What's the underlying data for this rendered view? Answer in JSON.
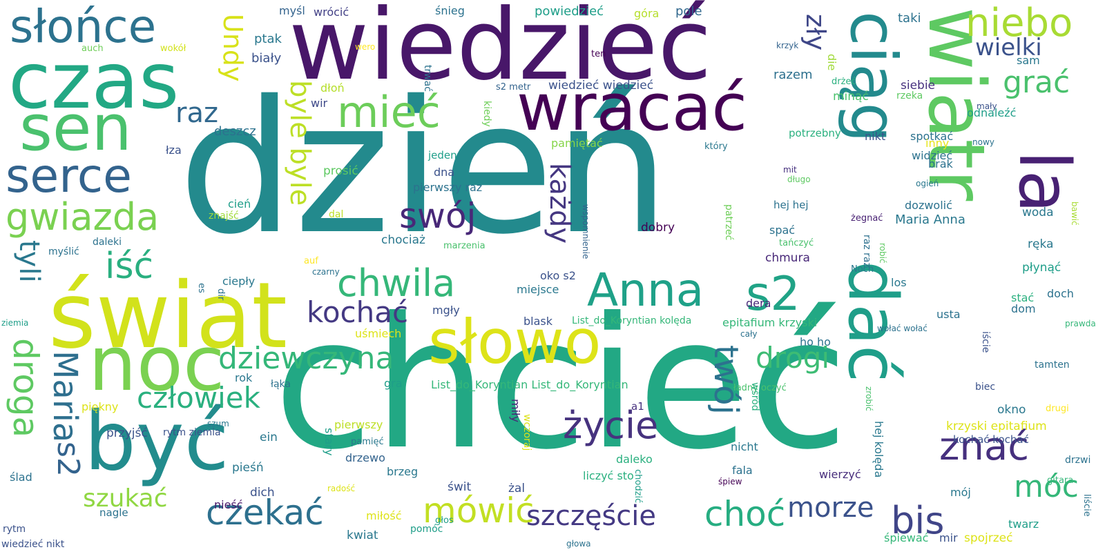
{
  "words": [
    {
      "text": "dzień",
      "color": "#238a8d",
      "v": false
    },
    {
      "text": "chcieć",
      "color": "#22a884",
      "v": false
    },
    {
      "text": "wiedzieć",
      "color": "#481769",
      "v": false
    },
    {
      "text": "świat",
      "color": "#d2e21b",
      "v": false
    },
    {
      "text": "czas",
      "color": "#22a884",
      "v": false
    },
    {
      "text": "być",
      "color": "#228c8d",
      "v": false
    },
    {
      "text": "noc",
      "color": "#7ad151",
      "v": false
    },
    {
      "text": "wiatr",
      "color": "#5ec962",
      "v": true
    },
    {
      "text": "sen",
      "color": "#4ac16d",
      "v": false
    },
    {
      "text": "słowo",
      "color": "#dde318",
      "v": false
    },
    {
      "text": "wracać",
      "color": "#440154",
      "v": false
    },
    {
      "text": "dać",
      "color": "#1f9e89",
      "v": true
    },
    {
      "text": "ciąg",
      "color": "#238a8d",
      "v": true
    },
    {
      "text": "la",
      "color": "#482173",
      "v": true
    },
    {
      "text": "słońce",
      "color": "#2c728e",
      "v": false
    },
    {
      "text": "serce",
      "color": "#33638d",
      "v": false
    },
    {
      "text": "mieć",
      "color": "#6ccd5a",
      "v": false
    },
    {
      "text": "Anna",
      "color": "#1fa188",
      "v": false
    },
    {
      "text": "s2",
      "color": "#20a386",
      "v": false
    },
    {
      "text": "gwiazda",
      "color": "#7ad151",
      "v": false
    },
    {
      "text": "niebo",
      "color": "#a8db34",
      "v": false
    },
    {
      "text": "wielki",
      "color": "#3b528b",
      "v": false
    },
    {
      "text": "grać",
      "color": "#4ac16d",
      "v": false
    },
    {
      "text": "zły",
      "color": "#3f4788",
      "v": true
    },
    {
      "text": "Undy",
      "color": "#d8e219",
      "v": true
    },
    {
      "text": "raz",
      "color": "#31688e",
      "v": false
    },
    {
      "text": "swój",
      "color": "#482878",
      "v": false
    },
    {
      "text": "iść",
      "color": "#29af7f",
      "v": false
    },
    {
      "text": "tyli",
      "color": "#2a788e",
      "v": true
    },
    {
      "text": "byle byle",
      "color": "#bddf26",
      "v": true
    },
    {
      "text": "chwila",
      "color": "#35b779",
      "v": false
    },
    {
      "text": "kochać",
      "color": "#443983",
      "v": false
    },
    {
      "text": "każdy",
      "color": "#453781",
      "v": true
    },
    {
      "text": "dziewczyna",
      "color": "#35b779",
      "v": false
    },
    {
      "text": "drogi",
      "color": "#3dbc74",
      "v": false
    },
    {
      "text": "twój",
      "color": "#2c728e",
      "v": true
    },
    {
      "text": "droga",
      "color": "#5ec962",
      "v": true
    },
    {
      "text": "Maria",
      "color": "#2e6f8e",
      "v": true
    },
    {
      "text": "człowiek",
      "color": "#2ab07f",
      "v": false
    },
    {
      "text": "życie",
      "color": "#46327e",
      "v": false
    },
    {
      "text": "znać",
      "color": "#46307e",
      "v": false
    },
    {
      "text": "s2",
      "color": "#33638d",
      "v": true
    },
    {
      "text": "szukać",
      "color": "#90d743",
      "v": false
    },
    {
      "text": "czekać",
      "color": "#2d708e",
      "v": false
    },
    {
      "text": "mówić",
      "color": "#c2df23",
      "v": false
    },
    {
      "text": "szczęście",
      "color": "#443983",
      "v": false
    },
    {
      "text": "choć",
      "color": "#26ad81",
      "v": false
    },
    {
      "text": "morze",
      "color": "#3b528b",
      "v": false
    },
    {
      "text": "bis",
      "color": "#404588",
      "v": false
    },
    {
      "text": "móc",
      "color": "#35b779",
      "v": false
    },
    {
      "text": "myśl",
      "color": "#33638d",
      "v": false
    },
    {
      "text": "wrócić",
      "color": "#424086",
      "v": false
    },
    {
      "text": "śnieg",
      "color": "#2c728e",
      "v": false
    },
    {
      "text": "powiedzieć",
      "color": "#1f9e89",
      "v": false
    },
    {
      "text": "góra",
      "color": "#b5de2b",
      "v": false
    },
    {
      "text": "pole",
      "color": "#31688e",
      "v": false
    },
    {
      "text": "taki",
      "color": "#2c728e",
      "v": false
    },
    {
      "text": "auch",
      "color": "#6ece58",
      "v": false
    },
    {
      "text": "wokół",
      "color": "#d2e21b",
      "v": false
    },
    {
      "text": "wero",
      "color": "#fde725",
      "v": false
    },
    {
      "text": "krzyk",
      "color": "#33638d",
      "v": false
    },
    {
      "text": "ptak",
      "color": "#2a788e",
      "v": false
    },
    {
      "text": "biały",
      "color": "#3b528b",
      "v": false
    },
    {
      "text": "ten",
      "color": "#440154",
      "v": false
    },
    {
      "text": "die",
      "color": "#a0da39",
      "v": true
    },
    {
      "text": "sam",
      "color": "#2a788e",
      "v": false
    },
    {
      "text": "dłoń",
      "color": "#b5de2b",
      "v": false
    },
    {
      "text": "trwać",
      "color": "#2c728e",
      "v": true
    },
    {
      "text": "razem",
      "color": "#2d708e",
      "v": false
    },
    {
      "text": "drżeć",
      "color": "#2ab07f",
      "v": false
    },
    {
      "text": "wir",
      "color": "#3e4989",
      "v": false
    },
    {
      "text": "s2 metr",
      "color": "#33638d",
      "v": false
    },
    {
      "text": "wiedzieć wiedzieć",
      "color": "#3b528b",
      "v": false
    },
    {
      "text": "siebie",
      "color": "#46307e",
      "v": false
    },
    {
      "text": "rzeka",
      "color": "#5ec962",
      "v": false
    },
    {
      "text": "minąć",
      "color": "#4ac16d",
      "v": false
    },
    {
      "text": "mały",
      "color": "#3b528b",
      "v": false
    },
    {
      "text": "odnaleźć",
      "color": "#1f9e89",
      "v": false
    },
    {
      "text": "deszcz",
      "color": "#2c728e",
      "v": false
    },
    {
      "text": "kiedy",
      "color": "#6ece58",
      "v": true
    },
    {
      "text": "potrzebny",
      "color": "#2ab07f",
      "v": false
    },
    {
      "text": "nikt",
      "color": "#3b528b",
      "v": false
    },
    {
      "text": "spotkać",
      "color": "#2c728e",
      "v": false
    },
    {
      "text": "łza",
      "color": "#3b528b",
      "v": false
    },
    {
      "text": "pamiętać",
      "color": "#86d549",
      "v": false
    },
    {
      "text": "który",
      "color": "#2a788e",
      "v": false
    },
    {
      "text": "inny",
      "color": "#e5e419",
      "v": false
    },
    {
      "text": "nowy",
      "color": "#2c728e",
      "v": false
    },
    {
      "text": "jeden",
      "color": "#1f9e89",
      "v": false
    },
    {
      "text": "widzieć",
      "color": "#2c728e",
      "v": false
    },
    {
      "text": "prosić",
      "color": "#5ec962",
      "v": false
    },
    {
      "text": "dna",
      "color": "#3b528b",
      "v": false
    },
    {
      "text": "mit",
      "color": "#46307e",
      "v": false
    },
    {
      "text": "brak",
      "color": "#2c728e",
      "v": false
    },
    {
      "text": "długo",
      "color": "#5ec962",
      "v": false
    },
    {
      "text": "pierwszy raz",
      "color": "#2c728e",
      "v": false
    },
    {
      "text": "ogień",
      "color": "#2a788e",
      "v": false
    },
    {
      "text": "dozwolić",
      "color": "#2c728e",
      "v": false
    },
    {
      "text": "cień",
      "color": "#1f9e89",
      "v": false
    },
    {
      "text": "znajść",
      "color": "#9fda3a",
      "v": false
    },
    {
      "text": "dal",
      "color": "#bddf26",
      "v": false
    },
    {
      "text": "wspomnienie",
      "color": "#33638d",
      "v": true
    },
    {
      "text": "patrzeć",
      "color": "#6ece58",
      "v": true
    },
    {
      "text": "hej hej",
      "color": "#2c728e",
      "v": false
    },
    {
      "text": "żegnać",
      "color": "#482173",
      "v": false
    },
    {
      "text": "bawić",
      "color": "#a8db34",
      "v": true
    },
    {
      "text": "woda",
      "color": "#2a788e",
      "v": false
    },
    {
      "text": "Maria Anna",
      "color": "#2a788e",
      "v": false
    },
    {
      "text": "dobry",
      "color": "#440154",
      "v": false
    },
    {
      "text": "spać",
      "color": "#2c728e",
      "v": false
    },
    {
      "text": "chociaż",
      "color": "#2a788e",
      "v": false
    },
    {
      "text": "marzenia",
      "color": "#4ac16d",
      "v": false
    },
    {
      "text": "tańczyć",
      "color": "#4ac16d",
      "v": false
    },
    {
      "text": "raz raz",
      "color": "#2d708e",
      "v": true
    },
    {
      "text": "robić",
      "color": "#5ec962",
      "v": true
    },
    {
      "text": "ręka",
      "color": "#2a788e",
      "v": false
    },
    {
      "text": "myślić",
      "color": "#2c728e",
      "v": false
    },
    {
      "text": "daleki",
      "color": "#2c728e",
      "v": false
    },
    {
      "text": "auf",
      "color": "#fde725",
      "v": false
    },
    {
      "text": "czarny",
      "color": "#2c728e",
      "v": false
    },
    {
      "text": "chmura",
      "color": "#482878",
      "v": false
    },
    {
      "text": "Noch",
      "color": "#2a788e",
      "v": false
    },
    {
      "text": "płynąć",
      "color": "#1f9e89",
      "v": false
    },
    {
      "text": "oko s2",
      "color": "#3b528b",
      "v": false
    },
    {
      "text": "ciepły",
      "color": "#2a788e",
      "v": false
    },
    {
      "text": "miejsce",
      "color": "#2a788e",
      "v": false
    },
    {
      "text": "los",
      "color": "#2a788e",
      "v": false
    },
    {
      "text": "es",
      "color": "#2c728e",
      "v": true
    },
    {
      "text": "dir",
      "color": "#2c728e",
      "v": true
    },
    {
      "text": "dera",
      "color": "#482878",
      "v": false
    },
    {
      "text": "stać",
      "color": "#2ab07f",
      "v": false
    },
    {
      "text": "doch",
      "color": "#2c728e",
      "v": false
    },
    {
      "text": "ziemia",
      "color": "#1f9e89",
      "v": false
    },
    {
      "text": "mgły",
      "color": "#3b528b",
      "v": false
    },
    {
      "text": "blask",
      "color": "#3b528b",
      "v": false
    },
    {
      "text": "List_do_Koryntian kolęda",
      "color": "#35b779",
      "v": false
    },
    {
      "text": "epitafium krzyski",
      "color": "#35b779",
      "v": false
    },
    {
      "text": "usta",
      "color": "#2c728e",
      "v": false
    },
    {
      "text": "dom",
      "color": "#2c728e",
      "v": false
    },
    {
      "text": "prawda",
      "color": "#35b779",
      "v": false
    },
    {
      "text": "uśmiech",
      "color": "#dde318",
      "v": false
    },
    {
      "text": "cały",
      "color": "#2c728e",
      "v": false
    },
    {
      "text": "wołać wołać",
      "color": "#2c728e",
      "v": false
    },
    {
      "text": "ho ho",
      "color": "#2c728e",
      "v": false
    },
    {
      "text": "iście",
      "color": "#3b528b",
      "v": true
    },
    {
      "text": "tamten",
      "color": "#2c728e",
      "v": false
    },
    {
      "text": "rok",
      "color": "#2a788e",
      "v": false
    },
    {
      "text": "łąka",
      "color": "#2c728e",
      "v": false
    },
    {
      "text": "gra",
      "color": "#1f9e89",
      "v": false
    },
    {
      "text": "List_do_Koryntian List_do_Koryntian",
      "color": "#35b779",
      "v": false
    },
    {
      "text": "ładny oczyć",
      "color": "#4ac16d",
      "v": false
    },
    {
      "text": "wśród",
      "color": "#2ab07f",
      "v": true
    },
    {
      "text": "zrobić",
      "color": "#4ac16d",
      "v": true
    },
    {
      "text": "biec",
      "color": "#3b528b",
      "v": false
    },
    {
      "text": "piękny",
      "color": "#dde318",
      "v": false
    },
    {
      "text": "okno",
      "color": "#2a788e",
      "v": false
    },
    {
      "text": "drugi",
      "color": "#fde725",
      "v": false
    },
    {
      "text": "a1",
      "color": "#46307e",
      "v": false
    },
    {
      "text": "przyjść",
      "color": "#3b528b",
      "v": false
    },
    {
      "text": "rytm ziemia",
      "color": "#3b528b",
      "v": false
    },
    {
      "text": "szum",
      "color": "#2a788e",
      "v": false
    },
    {
      "text": "pierwszy",
      "color": "#bddf26",
      "v": false
    },
    {
      "text": "miły",
      "color": "#482878",
      "v": true
    },
    {
      "text": "krzyski epitafium",
      "color": "#dde318",
      "v": false
    },
    {
      "text": "ein",
      "color": "#2a788e",
      "v": false
    },
    {
      "text": "pamięć",
      "color": "#2a788e",
      "v": false
    },
    {
      "text": "wczoraj",
      "color": "#dde318",
      "v": true
    },
    {
      "text": "stary",
      "color": "#1f9e89",
      "v": true
    },
    {
      "text": "kochać kochać",
      "color": "#3b528b",
      "v": false
    },
    {
      "text": "nicht",
      "color": "#2a788e",
      "v": false
    },
    {
      "text": "hej kolęda",
      "color": "#2a788e",
      "v": true
    },
    {
      "text": "drzewo",
      "color": "#33638d",
      "v": false
    },
    {
      "text": "brzeg",
      "color": "#2a788e",
      "v": false
    },
    {
      "text": "daleko",
      "color": "#2ab07f",
      "v": false
    },
    {
      "text": "drzwi",
      "color": "#2c728e",
      "v": false
    },
    {
      "text": "pieśń",
      "color": "#2a788e",
      "v": false
    },
    {
      "text": "fala",
      "color": "#2c728e",
      "v": false
    },
    {
      "text": "śpiew",
      "color": "#440154",
      "v": false
    },
    {
      "text": "ślad",
      "color": "#2c728e",
      "v": false
    },
    {
      "text": "liczyć sto",
      "color": "#2ab07f",
      "v": false
    },
    {
      "text": "wierzyć",
      "color": "#472d7b",
      "v": false
    },
    {
      "text": "gitara",
      "color": "#35b779",
      "v": false
    },
    {
      "text": "dich",
      "color": "#3b528b",
      "v": false
    },
    {
      "text": "świt",
      "color": "#3b528b",
      "v": false
    },
    {
      "text": "żal",
      "color": "#3b528b",
      "v": false
    },
    {
      "text": "chodzić",
      "color": "#1f9e89",
      "v": true
    },
    {
      "text": "mój",
      "color": "#2a788e",
      "v": false
    },
    {
      "text": "radość",
      "color": "#dde318",
      "v": false
    },
    {
      "text": "nieść",
      "color": "#481769",
      "v": false
    },
    {
      "text": "nagle",
      "color": "#2c728e",
      "v": false
    },
    {
      "text": "miłość",
      "color": "#dde318",
      "v": false
    },
    {
      "text": "głos",
      "color": "#1f9e89",
      "v": false
    },
    {
      "text": "pomóc",
      "color": "#1f9e89",
      "v": false
    },
    {
      "text": "kwiat",
      "color": "#2a788e",
      "v": false
    },
    {
      "text": "twarz",
      "color": "#1f9e89",
      "v": false
    },
    {
      "text": "liście",
      "color": "#2c728e",
      "v": true
    },
    {
      "text": "rytm",
      "color": "#3b528b",
      "v": false
    },
    {
      "text": "wiedzieć nikt",
      "color": "#3b528b",
      "v": false
    },
    {
      "text": "głowa",
      "color": "#2c728e",
      "v": false
    },
    {
      "text": "śpiewać",
      "color": "#35b779",
      "v": false
    },
    {
      "text": "mir",
      "color": "#3b528b",
      "v": false
    },
    {
      "text": "spojrzeć",
      "color": "#dde318",
      "v": false
    }
  ]
}
